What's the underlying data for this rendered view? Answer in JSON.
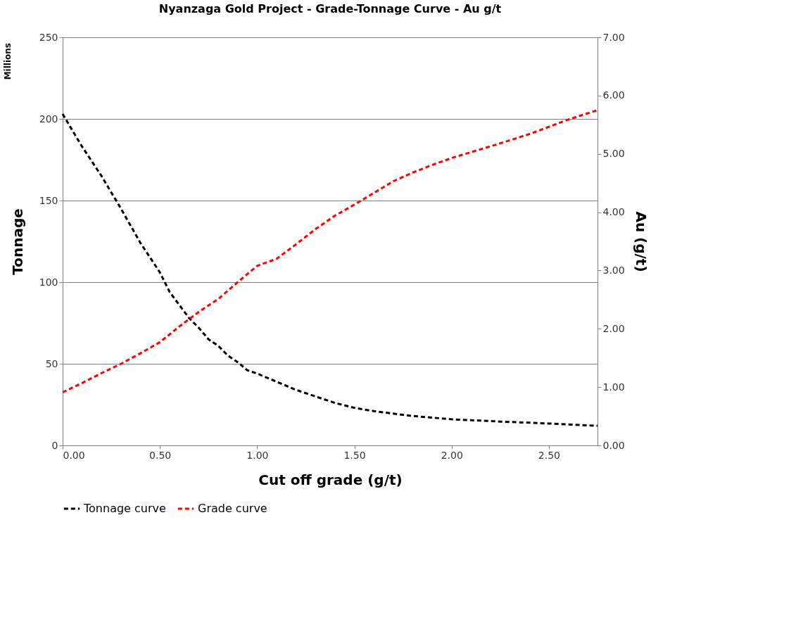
{
  "chart_data": {
    "type": "line",
    "title": "Nyanzaga Gold Project - Grade-Tonnage Curve - Au g/t",
    "xlabel": "Cut off grade (g/t)",
    "ylabel": "Tonnage",
    "y2label": "Au (g/t)",
    "annotations": [
      "Millions"
    ],
    "series": [
      {
        "name": "Tonnage curve",
        "color": "#000000",
        "x": [
          0,
          0.1,
          0.2,
          0.3,
          0.4,
          0.5,
          0.55,
          0.6,
          0.65,
          0.7,
          0.75,
          0.8,
          0.85,
          0.9,
          0.95,
          1.0,
          1.1,
          1.2,
          1.3,
          1.4,
          1.5,
          1.6,
          1.8,
          2.0,
          2.25,
          2.5,
          2.75
        ],
        "values": [
          203,
          183,
          165,
          145,
          124,
          106,
          94,
          86,
          78,
          72,
          65,
          61,
          55,
          51,
          46,
          44,
          39,
          34,
          30,
          26,
          23,
          21,
          18,
          16,
          14.6,
          13.4,
          12
        ]
      },
      {
        "name": "Grade curve",
        "color": "#ff0000",
        "axis": "y2",
        "x": [
          0,
          0.1,
          0.2,
          0.3,
          0.4,
          0.5,
          0.6,
          0.7,
          0.8,
          0.9,
          1.0,
          1.1,
          1.2,
          1.3,
          1.4,
          1.5,
          1.6,
          1.7,
          1.8,
          1.9,
          2.0,
          2.2,
          2.4,
          2.6,
          2.75
        ],
        "values": [
          0.91,
          1.07,
          1.24,
          1.4,
          1.58,
          1.77,
          2.04,
          2.29,
          2.51,
          2.8,
          3.08,
          3.2,
          3.45,
          3.71,
          3.94,
          4.13,
          4.33,
          4.53,
          4.68,
          4.81,
          4.93,
          5.13,
          5.34,
          5.59,
          5.75
        ]
      }
    ],
    "xlim": [
      0,
      2.75
    ],
    "xticks": [
      {
        "value": 0,
        "label": "0.00"
      },
      {
        "value": 0.5,
        "label": "0.50"
      },
      {
        "value": 1,
        "label": "1.00"
      },
      {
        "value": 1.5,
        "label": "1.50"
      },
      {
        "value": 2,
        "label": "2.00"
      },
      {
        "value": 2.5,
        "label": "2.50"
      }
    ],
    "ylim": [
      0,
      250
    ],
    "yticks": [
      0,
      50,
      100,
      150,
      200,
      250
    ],
    "y2lim": [
      0,
      7
    ],
    "y2ticks": [
      {
        "value": 0,
        "label": "0.00"
      },
      {
        "value": 1,
        "label": "1.00"
      },
      {
        "value": 2,
        "label": "2.00"
      },
      {
        "value": 3,
        "label": "3.00"
      },
      {
        "value": 4,
        "label": "4.00"
      },
      {
        "value": 5,
        "label": "5.00"
      },
      {
        "value": 6,
        "label": "6.00"
      },
      {
        "value": 7,
        "label": "7.00"
      }
    ],
    "grid": "y",
    "legend": "bottom",
    "line_style": "dashed",
    "marker": "none"
  }
}
